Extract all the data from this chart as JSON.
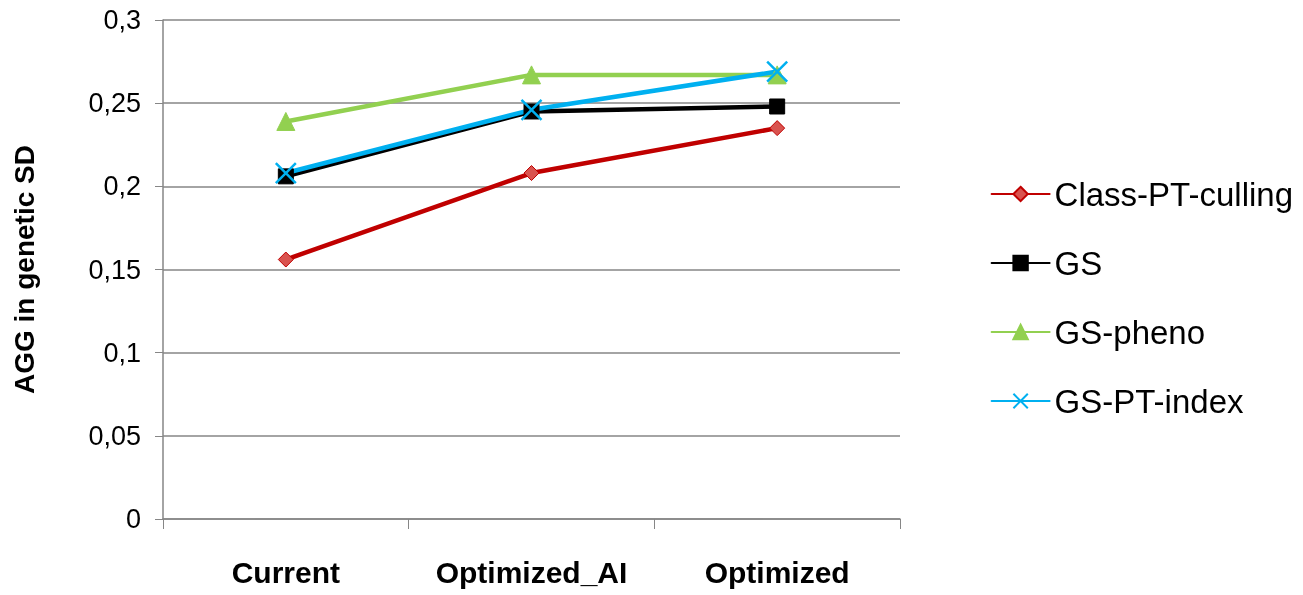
{
  "chart_data": {
    "type": "line",
    "ylabel": "AGG in genetic SD",
    "categories": [
      "Current",
      "Optimized_AI",
      "Optimized"
    ],
    "series": [
      {
        "name": "Class-PT-culling",
        "color": "#c00000",
        "marker": "diamond",
        "values": [
          0.156,
          0.208,
          0.235
        ]
      },
      {
        "name": "GS",
        "color": "#000000",
        "marker": "square",
        "values": [
          0.206,
          0.245,
          0.248
        ]
      },
      {
        "name": "GS-pheno",
        "color": "#92d050",
        "marker": "triangle",
        "values": [
          0.239,
          0.267,
          0.267
        ]
      },
      {
        "name": "GS-PT-index",
        "color": "#00b0f0",
        "marker": "cross",
        "values": [
          0.208,
          0.246,
          0.269
        ]
      }
    ],
    "ylim": [
      0,
      0.3
    ],
    "yticks": [
      0,
      {
        "value": 0.05,
        "label": "0,05"
      },
      {
        "value": 0.1,
        "label": "0,1"
      },
      {
        "value": 0.15,
        "label": "0,15"
      },
      {
        "value": 0.2,
        "label": "0,2"
      },
      {
        "value": 0.25,
        "label": "0,25"
      },
      {
        "value": 0.3,
        "label": "0,3"
      }
    ],
    "grid": "y",
    "legend": "right",
    "line_style": "solid"
  }
}
